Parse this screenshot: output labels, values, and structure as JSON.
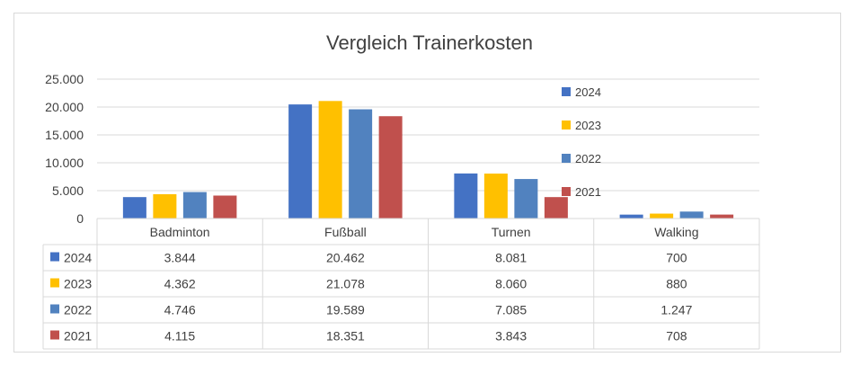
{
  "chart_data": {
    "type": "bar",
    "title": "Vergleich Trainerkosten",
    "categories": [
      "Badminton",
      "Fußball",
      "Turnen",
      "Walking"
    ],
    "series": [
      {
        "name": "2024",
        "color": "#4472c4",
        "values": [
          3844,
          20462,
          8081,
          700
        ],
        "labels": [
          "3.844",
          "20.462",
          "8.081",
          "700"
        ]
      },
      {
        "name": "2023",
        "color": "#ffc000",
        "values": [
          4362,
          21078,
          8060,
          880
        ],
        "labels": [
          "4.362",
          "21.078",
          "8.060",
          "880"
        ]
      },
      {
        "name": "2022",
        "color": "#5182bf",
        "values": [
          4746,
          19589,
          7085,
          1247
        ],
        "labels": [
          "4.746",
          "19.589",
          "7.085",
          "1.247"
        ]
      },
      {
        "name": "2021",
        "color": "#c0504d",
        "values": [
          4115,
          18351,
          3843,
          708
        ],
        "labels": [
          "4.115",
          "18.351",
          "3.843",
          "708"
        ]
      }
    ],
    "ylim": [
      0,
      25000
    ],
    "yticks": [
      0,
      5000,
      10000,
      15000,
      20000,
      25000
    ],
    "ytick_labels": [
      "0",
      "5.000",
      "10.000",
      "15.000",
      "20.000",
      "25.000"
    ],
    "grid": true,
    "legend": "top-right",
    "data_table": true
  }
}
